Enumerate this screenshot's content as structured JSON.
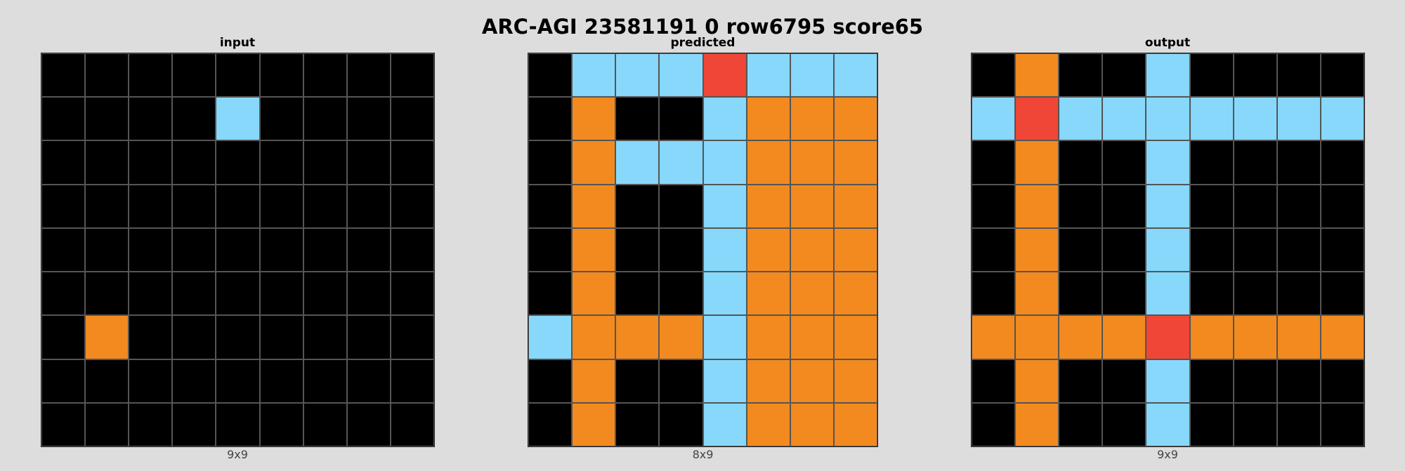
{
  "title": "ARC-AGI 23581191 0 row6795 score65",
  "colors": {
    "0": "#000000",
    "1": "#87d8fb",
    "2": "#f28a1f",
    "3": "#ef4637"
  },
  "panels": [
    {
      "name": "input",
      "label": "input",
      "dims": "9x9",
      "rows": 9,
      "cols": 9,
      "cells": [
        [
          0,
          0,
          0,
          0,
          0,
          0,
          0,
          0,
          0
        ],
        [
          0,
          0,
          0,
          0,
          1,
          0,
          0,
          0,
          0
        ],
        [
          0,
          0,
          0,
          0,
          0,
          0,
          0,
          0,
          0
        ],
        [
          0,
          0,
          0,
          0,
          0,
          0,
          0,
          0,
          0
        ],
        [
          0,
          0,
          0,
          0,
          0,
          0,
          0,
          0,
          0
        ],
        [
          0,
          0,
          0,
          0,
          0,
          0,
          0,
          0,
          0
        ],
        [
          0,
          2,
          0,
          0,
          0,
          0,
          0,
          0,
          0
        ],
        [
          0,
          0,
          0,
          0,
          0,
          0,
          0,
          0,
          0
        ],
        [
          0,
          0,
          0,
          0,
          0,
          0,
          0,
          0,
          0
        ]
      ]
    },
    {
      "name": "predicted",
      "label": "predicted",
      "dims": "8x9",
      "rows": 9,
      "cols": 8,
      "cells": [
        [
          0,
          1,
          1,
          1,
          3,
          1,
          1,
          1
        ],
        [
          0,
          2,
          0,
          0,
          1,
          2,
          2,
          2
        ],
        [
          0,
          2,
          1,
          1,
          1,
          2,
          2,
          2
        ],
        [
          0,
          2,
          0,
          0,
          1,
          2,
          2,
          2
        ],
        [
          0,
          2,
          0,
          0,
          1,
          2,
          2,
          2
        ],
        [
          0,
          2,
          0,
          0,
          1,
          2,
          2,
          2
        ],
        [
          1,
          2,
          2,
          2,
          1,
          2,
          2,
          2
        ],
        [
          0,
          2,
          0,
          0,
          1,
          2,
          2,
          2
        ],
        [
          0,
          2,
          0,
          0,
          1,
          2,
          2,
          2
        ]
      ]
    },
    {
      "name": "output",
      "label": "output",
      "dims": "9x9",
      "rows": 9,
      "cols": 9,
      "cells": [
        [
          0,
          2,
          0,
          0,
          1,
          0,
          0,
          0,
          0
        ],
        [
          1,
          3,
          1,
          1,
          1,
          1,
          1,
          1,
          1
        ],
        [
          0,
          2,
          0,
          0,
          1,
          0,
          0,
          0,
          0
        ],
        [
          0,
          2,
          0,
          0,
          1,
          0,
          0,
          0,
          0
        ],
        [
          0,
          2,
          0,
          0,
          1,
          0,
          0,
          0,
          0
        ],
        [
          0,
          2,
          0,
          0,
          1,
          0,
          0,
          0,
          0
        ],
        [
          2,
          2,
          2,
          2,
          3,
          2,
          2,
          2,
          2
        ],
        [
          0,
          2,
          0,
          0,
          1,
          0,
          0,
          0,
          0
        ],
        [
          0,
          2,
          0,
          0,
          1,
          0,
          0,
          0,
          0
        ]
      ]
    }
  ]
}
